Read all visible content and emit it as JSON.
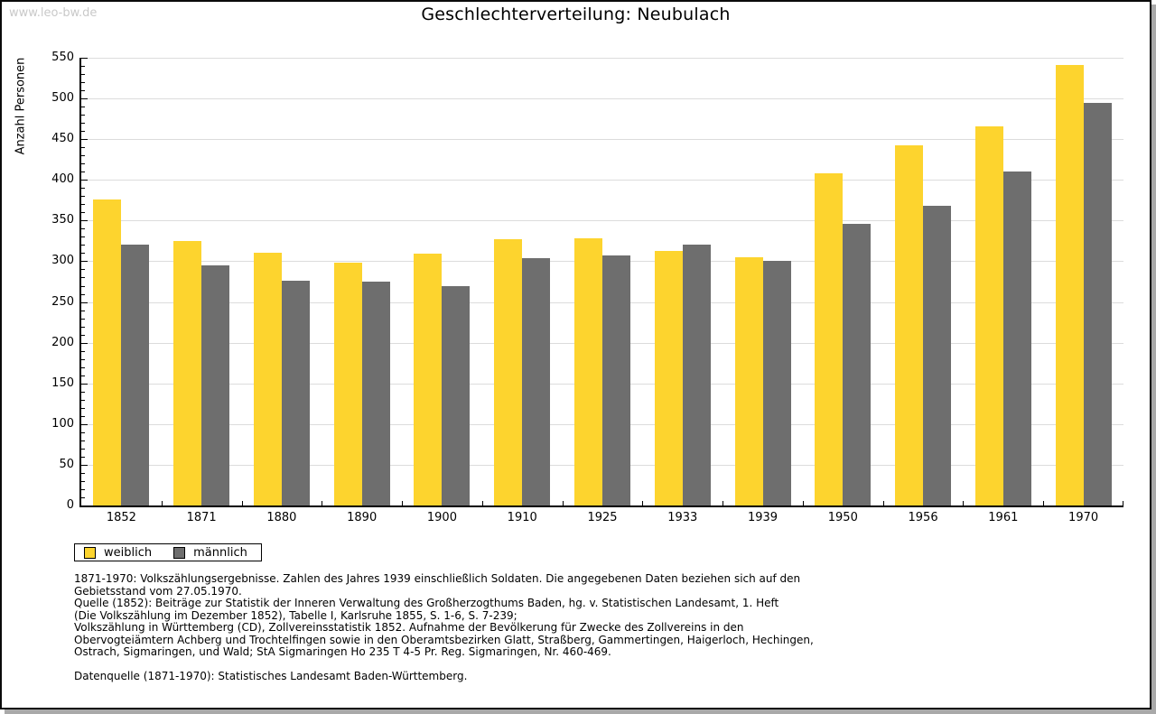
{
  "watermark": "www.leo-bw.de",
  "title": "Geschlechterverteilung: Neubulach",
  "chart_data": {
    "type": "bar",
    "title": "Geschlechterverteilung: Neubulach",
    "ylabel": "Anzahl Personen",
    "xlabel": "",
    "ylim": [
      0,
      550
    ],
    "ytick_step": 50,
    "yminor_step": 10,
    "grid": "horizontal-major",
    "legend_position": "bottom-left",
    "categories": [
      "1852",
      "1871",
      "1880",
      "1890",
      "1900",
      "1910",
      "1925",
      "1933",
      "1939",
      "1950",
      "1956",
      "1961",
      "1970"
    ],
    "series": [
      {
        "name": "weiblich",
        "color": "#FDD42E",
        "values": [
          376,
          325,
          311,
          298,
          309,
          327,
          328,
          313,
          305,
          408,
          442,
          466,
          541
        ]
      },
      {
        "name": "männlich",
        "color": "#6E6E6E",
        "values": [
          320,
          295,
          276,
          275,
          269,
          304,
          307,
          321,
          301,
          346,
          368,
          410,
          495
        ]
      }
    ]
  },
  "legend": {
    "items": [
      {
        "label": "weiblich",
        "color": "#FDD42E"
      },
      {
        "label": "männlich",
        "color": "#6E6E6E"
      }
    ]
  },
  "footnotes": {
    "lines": [
      "1871-1970: Volkszählungsergebnisse. Zahlen des Jahres 1939 einschließlich Soldaten. Die angegebenen Daten beziehen sich auf den",
      "Gebietsstand vom 27.05.1970.",
      "Quelle (1852): Beiträge zur Statistik der Inneren Verwaltung des Großherzogthums Baden, hg. v. Statistischen Landesamt, 1. Heft",
      "(Die Volkszählung im Dezember 1852), Tabelle I, Karlsruhe 1855, S. 1-6, S. 7-239;",
      "Volkszählung in Württemberg (CD), Zollvereinsstatistik 1852. Aufnahme der Bevölkerung für Zwecke des Zollvereins in den",
      "Obervogteiämtern Achberg und Trochtelfingen sowie in den Oberamtsbezirken Glatt, Straßberg, Gammertingen, Haigerloch, Hechingen,",
      "Ostrach, Sigmaringen, und Wald; StA Sigmaringen Ho 235 T 4-5 Pr. Reg. Sigmaringen, Nr. 460-469."
    ],
    "datasource": "Datenquelle (1871-1970): Statistisches Landesamt Baden-Württemberg."
  }
}
